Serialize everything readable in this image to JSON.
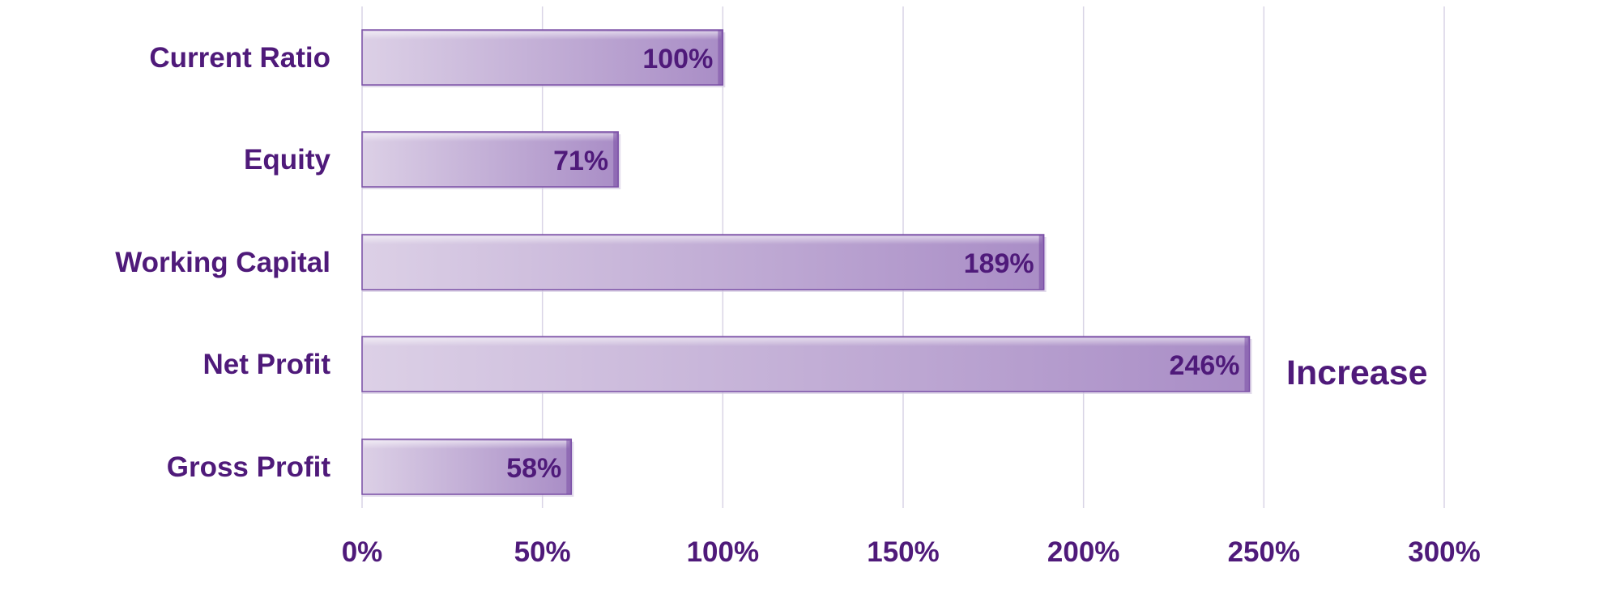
{
  "chart_data": {
    "type": "bar",
    "orientation": "horizontal",
    "categories": [
      "Current Ratio",
      "Equity",
      "Working Capital",
      "Net Profit",
      "Gross Profit"
    ],
    "values": [
      100,
      71,
      189,
      246,
      58
    ],
    "data_labels": [
      "100%",
      "71%",
      "189%",
      "246%",
      "58%"
    ],
    "xlim": [
      0,
      300
    ],
    "ticks": [
      0,
      50,
      100,
      150,
      200,
      250,
      300
    ],
    "tick_labels": [
      "0%",
      "50%",
      "100%",
      "150%",
      "200%",
      "250%",
      "300%"
    ],
    "grid": true,
    "annotation": "Increase",
    "colors": {
      "text": "#4f1a7a",
      "bar_light": "#dcd0e6",
      "bar_dark": "#a98dc6",
      "bar_edge": "#7a4fa6",
      "grid": "#d9d4e6"
    }
  }
}
